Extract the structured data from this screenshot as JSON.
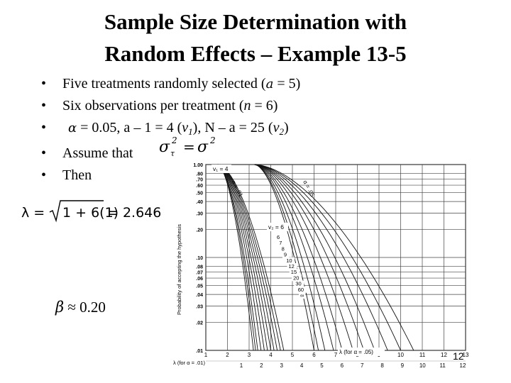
{
  "title": {
    "line1": "Sample Size Determination with",
    "line2": "Random Effects – Example 13-5"
  },
  "bullets": {
    "b1": {
      "pre": "Five treatments randomly selected (",
      "var": "a",
      "post": " = 5)"
    },
    "b2": {
      "pre": "Six observations per treatment (",
      "var": "n",
      "post": " = 6)"
    },
    "b3": {
      "greek": "α",
      "mid": " = 0.05, a – 1 = 4 (",
      "v1": "v",
      "s1": "1",
      "mid2": "), N – a = 25 (",
      "v2": "v",
      "s2": "2",
      "post": ")"
    },
    "b4": {
      "text": "Assume that"
    },
    "b5": {
      "text": "Then"
    }
  },
  "equation_assume": {
    "lhs": "σ",
    "sub": "τ",
    "sup": "2",
    "eq": "=",
    "rhs": "σ",
    "rsup": "2"
  },
  "equation_lambda": {
    "lhs": "λ =",
    "radicand": "1 + 6(1)",
    "result": "= 2.646"
  },
  "beta": {
    "symbol": "β",
    "approx": "≈",
    "value": "0.20"
  },
  "page_number": "12",
  "chart_data": {
    "type": "line",
    "ylabel": "Probability of accepting the hypothesis",
    "y_ticks": [
      "1.00",
      ".80",
      ".70",
      ".60",
      ".50",
      ".40",
      ".30",
      ".20",
      ".10",
      ".08",
      ".07",
      ".06",
      ".05",
      ".04",
      ".03",
      ".02",
      ".01"
    ],
    "x_ticks_top": [
      "1",
      "2",
      "3",
      "4",
      "5",
      "6",
      "7",
      "8",
      "9",
      "10",
      "11",
      "12",
      "13"
    ],
    "x_ticks_bottom": [
      "1",
      "2",
      "3",
      "4",
      "5",
      "6",
      "7",
      "8",
      "9",
      "10",
      "11",
      "12"
    ],
    "xlabel_top": "λ (for α = .05)",
    "xlabel_bottom": "λ (for α = .01)",
    "annotations": {
      "v1": "v₁ = 4",
      "alpha01": "α = .01",
      "alpha05": "α = .05",
      "v2": "v₂ = 6"
    },
    "v2_labels": [
      "6",
      "7",
      "8",
      "9",
      "10",
      "12",
      "15",
      "20",
      "30",
      "60",
      "∞"
    ],
    "curve_families": [
      {
        "name": "α = .01",
        "start_x": 1.55,
        "end_x": [
          4.6,
          4.45,
          4.3,
          4.15,
          4.0,
          3.85,
          3.7,
          3.55,
          3.4,
          3.3,
          3.2
        ]
      },
      {
        "name": "α = .05",
        "start_x": 3.25,
        "end_x": [
          10.6,
          10.0,
          9.4,
          8.8,
          8.3,
          7.8,
          7.3,
          6.9,
          6.5,
          6.2,
          6.0
        ]
      }
    ]
  }
}
